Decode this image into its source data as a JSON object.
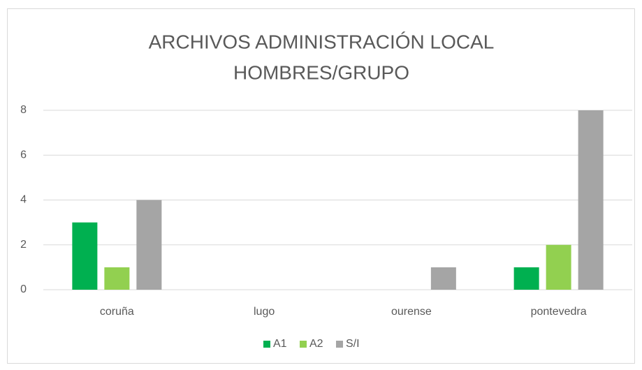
{
  "chart_data": {
    "type": "bar",
    "title": [
      "ARCHIVOS ADMINISTRACIÓN LOCAL",
      "HOMBRES/GRUPO"
    ],
    "categories": [
      "coruña",
      "lugo",
      "ourense",
      "pontevedra"
    ],
    "series": [
      {
        "name": "A1",
        "color": "#00b050",
        "values": [
          3,
          0,
          0,
          1
        ]
      },
      {
        "name": "A2",
        "color": "#92d050",
        "values": [
          1,
          0,
          0,
          2
        ]
      },
      {
        "name": "S/I",
        "color": "#a5a5a5",
        "values": [
          4,
          0,
          1,
          8
        ]
      }
    ],
    "ylim": [
      0,
      8
    ],
    "yticks": [
      0,
      2,
      4,
      6,
      8
    ],
    "grid": true,
    "legend": "bottom"
  }
}
